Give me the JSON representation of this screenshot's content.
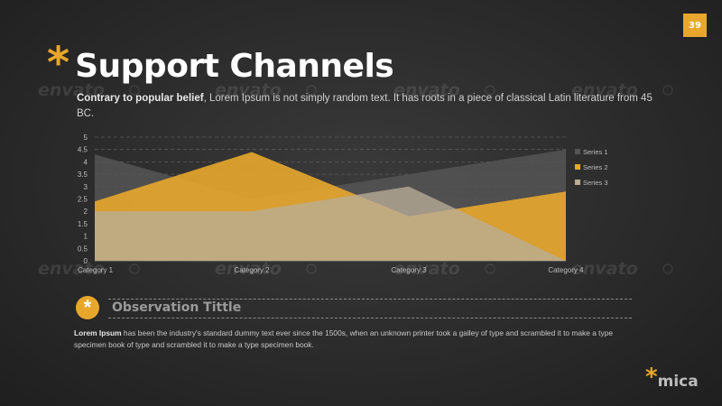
{
  "page": {
    "number": "39"
  },
  "header": {
    "title": "Support Channels"
  },
  "intro": {
    "lead": "Contrary to popular belief",
    "rest": ", Lorem Ipsum is not simply random text. It has roots in a piece of classical Latin literature from 45 BC."
  },
  "chart_data": {
    "type": "area",
    "categories": [
      "Category 1",
      "Category 2",
      "Category 3",
      "Category 4"
    ],
    "series": [
      {
        "name": "Series 1",
        "values": [
          4.3,
          2.5,
          3.5,
          4.5
        ],
        "color": "#555555"
      },
      {
        "name": "Series 2",
        "values": [
          2.4,
          4.4,
          1.8,
          2.8
        ],
        "color": "#e8a72c"
      },
      {
        "name": "Series 3",
        "values": [
          2.0,
          2.0,
          3.0,
          0.0
        ],
        "color": "#b9ad97"
      }
    ],
    "ylim": [
      0,
      5
    ],
    "yticks": [
      "0",
      "0.5",
      "1",
      "1.5",
      "2",
      "2.5",
      "3",
      "3.5",
      "4",
      "4.5",
      "5"
    ],
    "grid": true,
    "legend_position": "right"
  },
  "observation": {
    "icon": "asterisk-icon",
    "title": "Observation Tittle",
    "body_lead": "Lorem Ipsum",
    "body_rest": " has been the industry's standard dummy text ever since the 1500s, when an unknown printer took a galley of type and scrambled it to make a type specimen book of type and scrambled it to make a type specimen book."
  },
  "brand": {
    "star": "*",
    "name": "mica"
  },
  "watermark": {
    "text": "envato"
  },
  "colors": {
    "accent": "#e8a72c",
    "background": "#2f2f2f"
  }
}
